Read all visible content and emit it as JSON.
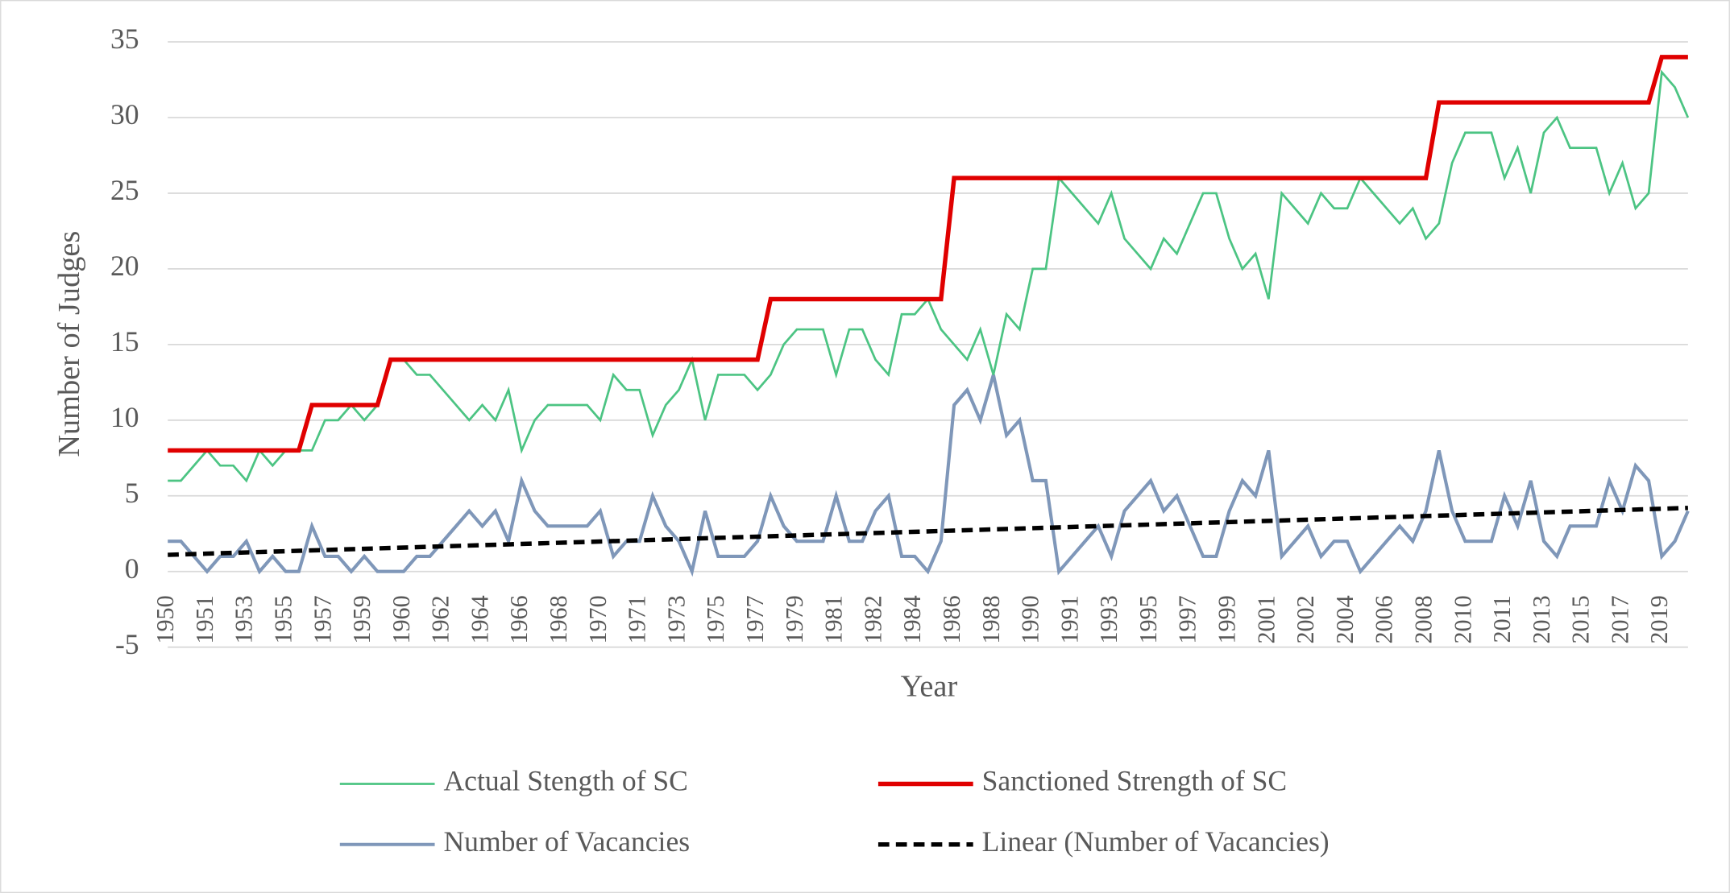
{
  "chart_data": {
    "type": "line",
    "y_label": "Number of Judges",
    "x_label": "Year",
    "categories": [
      "1950",
      null,
      null,
      "1951",
      null,
      null,
      "1953",
      null,
      null,
      "1955",
      null,
      null,
      "1957",
      null,
      null,
      "1959",
      null,
      null,
      "1960",
      null,
      null,
      "1962",
      null,
      null,
      "1964",
      null,
      null,
      "1966",
      null,
      null,
      "1968",
      null,
      null,
      "1970",
      null,
      null,
      "1971",
      null,
      null,
      "1973",
      null,
      null,
      "1975",
      null,
      null,
      "1977",
      null,
      null,
      "1979",
      null,
      null,
      "1981",
      null,
      null,
      "1982",
      null,
      null,
      "1984",
      null,
      null,
      "1986",
      null,
      null,
      "1988",
      null,
      null,
      "1990",
      null,
      null,
      "1991",
      null,
      null,
      "1993",
      null,
      null,
      "1995",
      null,
      null,
      "1997",
      null,
      null,
      "1999",
      null,
      null,
      "2001",
      null,
      null,
      "2002",
      null,
      null,
      "2004",
      null,
      null,
      "2006",
      null,
      null,
      "2008",
      null,
      null,
      "2010",
      null,
      null,
      "2011",
      null,
      null,
      "2013",
      null,
      null,
      "2015",
      null,
      null,
      "2017",
      null,
      null,
      "2019",
      null,
      null
    ],
    "ylim": [
      -5,
      35
    ],
    "yticks": [
      -5,
      0,
      5,
      10,
      15,
      20,
      25,
      30,
      35
    ],
    "grid": true,
    "series": [
      {
        "name": "Actual Stength of SC",
        "color": "#4cc483",
        "width": 2,
        "values": [
          6,
          6,
          7,
          8,
          7,
          7,
          6,
          8,
          7,
          8,
          8,
          8,
          10,
          10,
          11,
          10,
          11,
          14,
          14,
          13,
          13,
          12,
          11,
          10,
          11,
          10,
          12,
          8,
          10,
          11,
          11,
          11,
          11,
          10,
          13,
          12,
          12,
          9,
          11,
          12,
          14,
          10,
          13,
          13,
          13,
          12,
          13,
          15,
          16,
          16,
          16,
          13,
          16,
          16,
          14,
          13,
          17,
          17,
          18,
          16,
          15,
          14,
          16,
          13,
          17,
          16,
          20,
          20,
          26,
          25,
          24,
          23,
          25,
          22,
          21,
          20,
          22,
          21,
          23,
          25,
          25,
          22,
          20,
          21,
          18,
          25,
          24,
          23,
          25,
          24,
          24,
          26,
          25,
          24,
          23,
          24,
          22,
          23,
          27,
          29,
          29,
          29,
          26,
          28,
          25,
          29,
          30,
          28,
          28,
          28,
          25,
          27,
          24,
          25,
          33,
          32,
          30
        ]
      },
      {
        "name": "Sanctioned Strength of SC",
        "color": "#e00000",
        "width": 4,
        "values": [
          8,
          8,
          8,
          8,
          8,
          8,
          8,
          8,
          8,
          8,
          8,
          11,
          11,
          11,
          11,
          11,
          11,
          14,
          14,
          14,
          14,
          14,
          14,
          14,
          14,
          14,
          14,
          14,
          14,
          14,
          14,
          14,
          14,
          14,
          14,
          14,
          14,
          14,
          14,
          14,
          14,
          14,
          14,
          14,
          14,
          14,
          18,
          18,
          18,
          18,
          18,
          18,
          18,
          18,
          18,
          18,
          18,
          18,
          18,
          18,
          26,
          26,
          26,
          26,
          26,
          26,
          26,
          26,
          26,
          26,
          26,
          26,
          26,
          26,
          26,
          26,
          26,
          26,
          26,
          26,
          26,
          26,
          26,
          26,
          26,
          26,
          26,
          26,
          26,
          26,
          26,
          26,
          26,
          26,
          26,
          26,
          26,
          31,
          31,
          31,
          31,
          31,
          31,
          31,
          31,
          31,
          31,
          31,
          31,
          31,
          31,
          31,
          31,
          31,
          34,
          34,
          34
        ]
      },
      {
        "name": "Number of Vacancies",
        "color": "#7f97b9",
        "width": 3,
        "values": [
          2,
          2,
          1,
          0,
          1,
          1,
          2,
          0,
          1,
          0,
          0,
          3,
          1,
          1,
          0,
          1,
          0,
          0,
          0,
          1,
          1,
          2,
          3,
          4,
          3,
          4,
          2,
          6,
          4,
          3,
          3,
          3,
          3,
          4,
          1,
          2,
          2,
          5,
          3,
          2,
          0,
          4,
          1,
          1,
          1,
          2,
          5,
          3,
          2,
          2,
          2,
          5,
          2,
          2,
          4,
          5,
          1,
          1,
          0,
          2,
          11,
          12,
          10,
          13,
          9,
          10,
          6,
          6,
          0,
          1,
          2,
          3,
          1,
          4,
          5,
          6,
          4,
          5,
          3,
          1,
          1,
          4,
          6,
          5,
          8,
          1,
          2,
          3,
          1,
          2,
          2,
          0,
          1,
          2,
          3,
          2,
          4,
          8,
          4,
          2,
          2,
          2,
          5,
          3,
          6,
          2,
          1,
          3,
          3,
          3,
          6,
          4,
          7,
          6,
          1,
          2,
          4
        ]
      }
    ],
    "trendline": {
      "name": "Linear (Number of Vacancies)",
      "color": "#000000",
      "start": 1.1,
      "end": 4.2
    }
  }
}
